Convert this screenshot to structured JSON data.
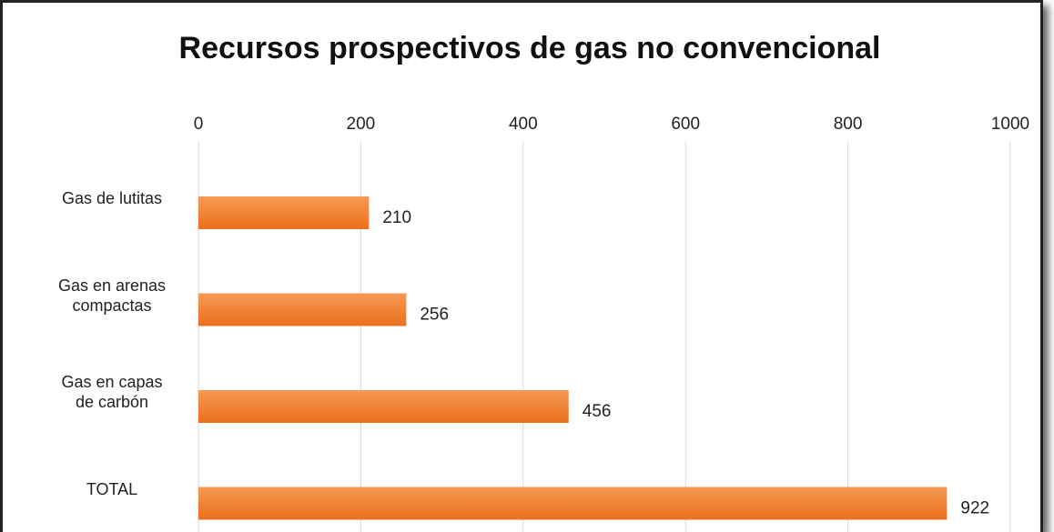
{
  "chart_data": {
    "type": "bar",
    "orientation": "horizontal",
    "title": "Recursos prospectivos de gas no convencional",
    "categories": [
      "Gas de lutitas",
      "Gas en arenas\ncompactas",
      "Gas en capas\nde carbón",
      "TOTAL"
    ],
    "values": [
      210,
      256,
      456,
      922
    ],
    "color": "#ef7b2d",
    "xlim": [
      0,
      1000
    ],
    "xticks": [
      0,
      200,
      400,
      600,
      800,
      1000
    ],
    "grid": true
  }
}
